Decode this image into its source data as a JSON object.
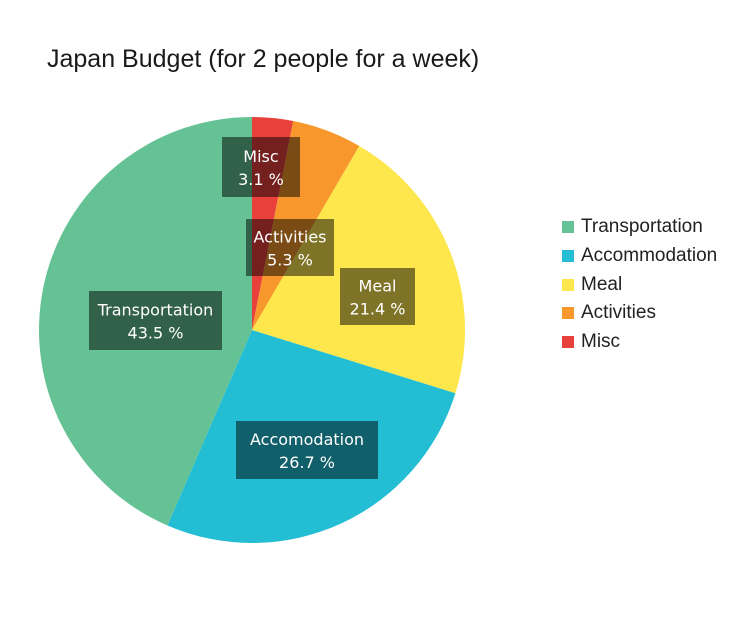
{
  "chart_data": {
    "type": "pie",
    "title": "Japan Budget (for 2 people for a week)",
    "slices": [
      {
        "label": "Misc",
        "legend": "Misc",
        "value": 3.1,
        "value_label": "3.1 %",
        "color": "#e8413c"
      },
      {
        "label": "Activities",
        "legend": "Activities",
        "value": 5.3,
        "value_label": "5.3 %",
        "color": "#f7972c"
      },
      {
        "label": "Meal",
        "legend": "Meal",
        "value": 21.4,
        "value_label": "21.4 %",
        "color": "#fde74c"
      },
      {
        "label": "Accomodation",
        "legend": "Accommodation",
        "value": 26.7,
        "value_label": "26.7 %",
        "color": "#23bed4"
      },
      {
        "label": "Transportation",
        "legend": "Transportation",
        "value": 43.5,
        "value_label": "43.5 %",
        "color": "#65c294"
      }
    ],
    "legend_order": [
      "Transportation",
      "Accommodation",
      "Meal",
      "Activities",
      "Misc"
    ],
    "legend_position": "right",
    "start_angle": "12 o'clock",
    "direction": "clockwise"
  }
}
